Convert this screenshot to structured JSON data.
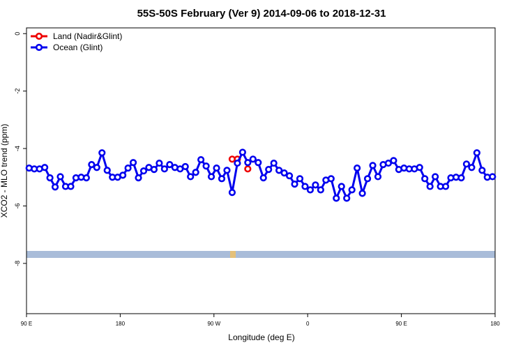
{
  "chart_data": {
    "type": "line",
    "title": "55S-50S February (Ver 9)   2014-09-06 to 2018-12-31",
    "x_label": "Longitude (deg E)",
    "y_label": "XCO2 - MLO trend (ppm)",
    "xlim": [
      90,
      540
    ],
    "xticks": [
      {
        "value": 90,
        "label": "90 E"
      },
      180,
      {
        "value": 270,
        "label": "90 W"
      },
      {
        "value": 360,
        "label": "0"
      },
      {
        "value": 450,
        "label": "90 E"
      },
      {
        "value": 540,
        "label": "180"
      }
    ],
    "ylim": [
      -9.75,
      0.2
    ],
    "yticks": [
      0,
      -2,
      -4,
      -6,
      -8
    ],
    "legend": "top-left",
    "series": [
      {
        "name": "Land (Nadir&Glint)",
        "color": "#ee0000",
        "x": [
          287.5,
          292.5,
          297.5,
          302.5
        ],
        "values": [
          -4.37,
          -4.37,
          null,
          -4.71
        ]
      },
      {
        "name": "Ocean (Glint)",
        "color": "#0000ee",
        "x": [
          92.5,
          97.5,
          102.5,
          107.5,
          112.5,
          117.5,
          122.5,
          127.5,
          132.5,
          137.5,
          142.5,
          147.5,
          152.5,
          157.5,
          162.5,
          167.5,
          172.5,
          177.5,
          182.5,
          187.5,
          192.5,
          197.5,
          202.5,
          207.5,
          212.5,
          217.5,
          222.5,
          227.5,
          232.5,
          237.5,
          242.5,
          247.5,
          252.5,
          257.5,
          262.5,
          267.5,
          272.5,
          277.5,
          282.5,
          287.5,
          292.5,
          297.5,
          302.5,
          307.5,
          312.5,
          317.5,
          322.5,
          327.5,
          332.5,
          337.5,
          342.5,
          347.5,
          352.5,
          357.5,
          362.5,
          367.5,
          372.5,
          377.5,
          382.5,
          387.5,
          392.5,
          397.5,
          402.5,
          407.5,
          412.5,
          417.5,
          422.5,
          427.5,
          432.5,
          437.5,
          442.5,
          447.5,
          452.5,
          457.5,
          462.5,
          467.5,
          472.5,
          477.5,
          482.5,
          487.5,
          492.5,
          497.5,
          502.5,
          507.5,
          512.5,
          517.5,
          522.5,
          527.5,
          532.5,
          537.5
        ],
        "values": [
          -4.68,
          -4.71,
          -4.71,
          -4.66,
          -5.02,
          -5.34,
          -4.98,
          -5.32,
          -5.32,
          -5.02,
          -5.0,
          -5.02,
          -4.56,
          -4.66,
          -4.15,
          -4.76,
          -5.0,
          -5.0,
          -4.93,
          -4.68,
          -4.49,
          -5.02,
          -4.78,
          -4.66,
          -4.73,
          -4.51,
          -4.71,
          -4.56,
          -4.66,
          -4.71,
          -4.63,
          -4.98,
          -4.83,
          -4.39,
          -4.61,
          -4.98,
          -4.68,
          -5.05,
          -4.76,
          -5.53,
          -4.51,
          -4.13,
          -4.49,
          -4.37,
          -4.49,
          -5.02,
          -4.73,
          -4.51,
          -4.76,
          -4.85,
          -4.95,
          -5.24,
          -5.05,
          -5.32,
          -5.44,
          -5.27,
          -5.44,
          -5.1,
          -5.05,
          -5.73,
          -5.32,
          -5.73,
          -5.44,
          -4.68,
          -5.56,
          -5.05,
          -4.59,
          -4.98,
          -4.56,
          -4.51,
          -4.42,
          -4.73,
          -4.68,
          -4.71,
          -4.71,
          -4.66,
          -5.05,
          -5.32,
          -4.98,
          -5.32,
          -5.32,
          -5.02,
          -5.0,
          -5.02,
          -4.54,
          -4.66,
          -4.15,
          -4.76,
          -5.0,
          -4.98
        ]
      }
    ]
  }
}
